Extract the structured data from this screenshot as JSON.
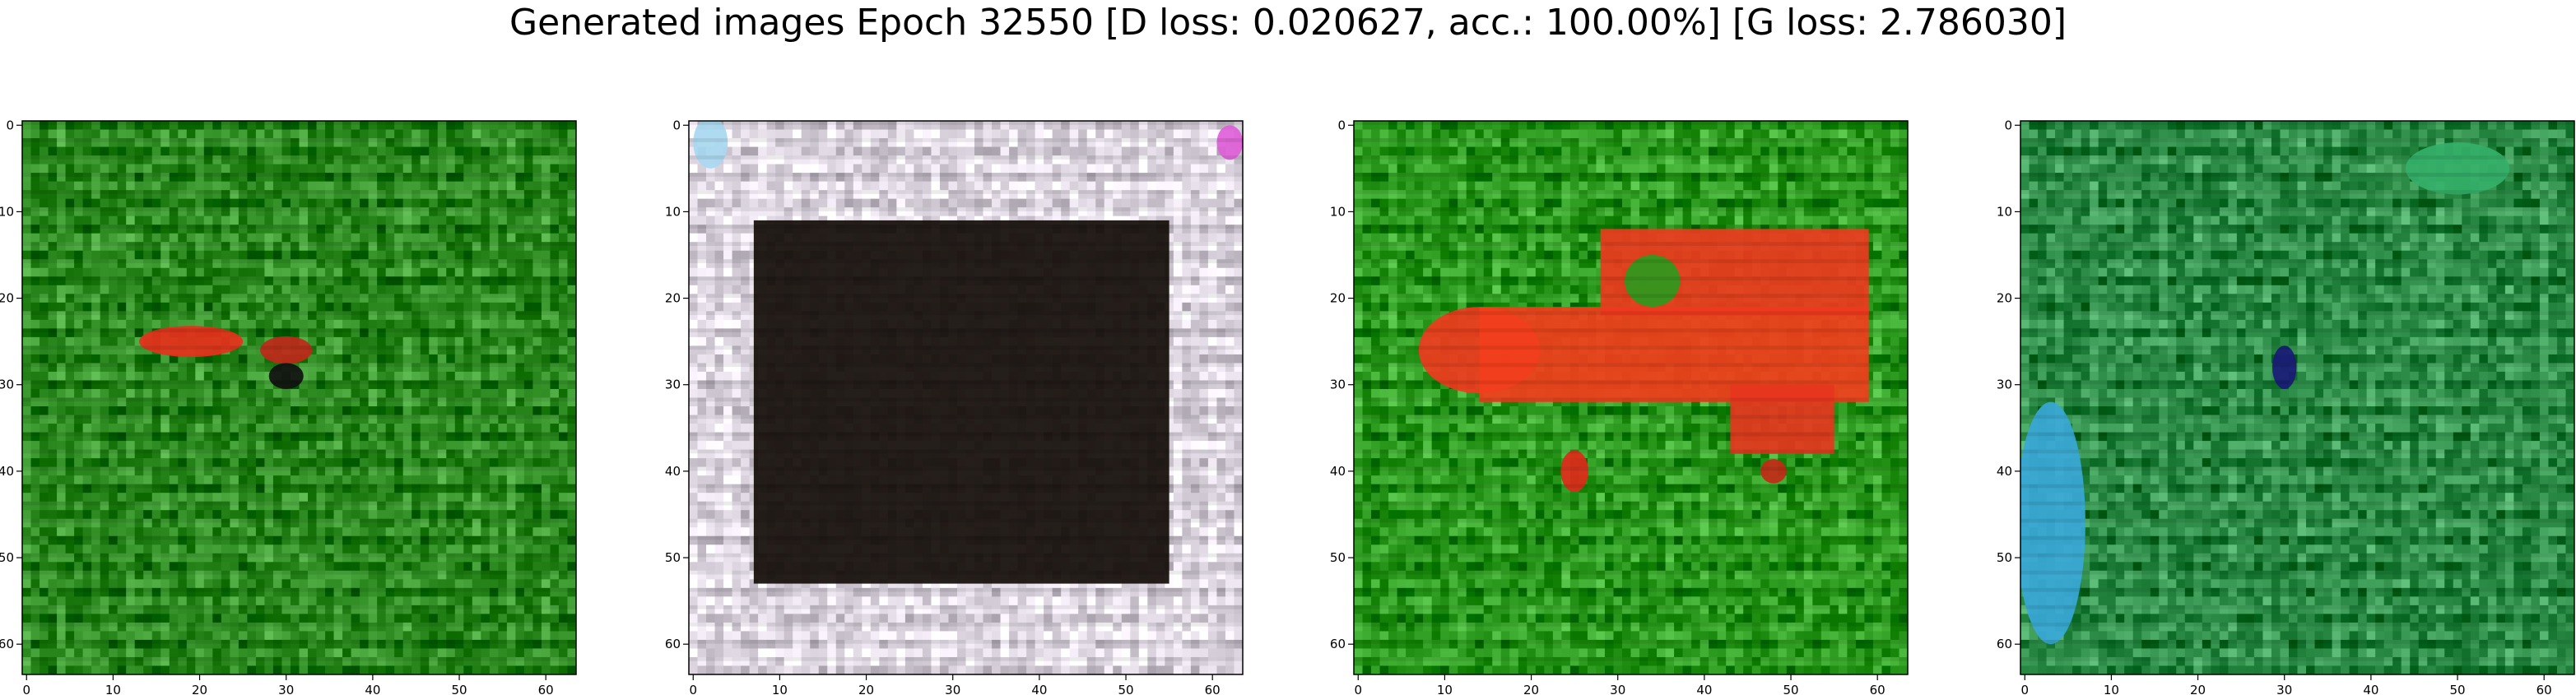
{
  "title": "Generated images Epoch 32550 [D loss: 0.020627, acc.: 100.00%] [G loss: 2.786030]",
  "chart_data": [
    {
      "type": "heatmap",
      "panel": 1,
      "xlim": [
        -0.5,
        63.5
      ],
      "ylim": [
        63.5,
        -0.5
      ],
      "x_ticks": [
        0,
        10,
        20,
        30,
        40,
        50,
        60
      ],
      "y_ticks": [
        0,
        10,
        20,
        30,
        40,
        50,
        60
      ],
      "base_color": "#2e8b22",
      "features": [
        {
          "kind": "blob",
          "cx": 19,
          "cy": 25,
          "rx": 6,
          "ry": 1.8,
          "color": "#e8301c"
        },
        {
          "kind": "blob",
          "cx": 30,
          "cy": 26,
          "rx": 3,
          "ry": 1.6,
          "color": "#c0281a"
        },
        {
          "kind": "blob",
          "cx": 30,
          "cy": 29,
          "rx": 2,
          "ry": 1.5,
          "color": "#111111"
        }
      ]
    },
    {
      "type": "heatmap",
      "panel": 2,
      "xlim": [
        -0.5,
        63.5
      ],
      "ylim": [
        63.5,
        -0.5
      ],
      "x_ticks": [
        0,
        10,
        20,
        30,
        40,
        50,
        60
      ],
      "y_ticks": [
        0,
        10,
        20,
        30,
        40,
        50,
        60
      ],
      "base_color": "#e4dde8",
      "features": [
        {
          "kind": "rect",
          "x0": 7,
          "y0": 11,
          "x1": 55,
          "y1": 53,
          "color": "#120c08"
        },
        {
          "kind": "blob",
          "cx": 2,
          "cy": 2,
          "rx": 2,
          "ry": 3,
          "color": "#a8d8f0"
        },
        {
          "kind": "blob",
          "cx": 62,
          "cy": 2,
          "rx": 1.5,
          "ry": 2,
          "color": "#e060d8"
        }
      ]
    },
    {
      "type": "heatmap",
      "panel": 3,
      "xlim": [
        -0.5,
        63.5
      ],
      "ylim": [
        63.5,
        -0.5
      ],
      "x_ticks": [
        0,
        10,
        20,
        30,
        40,
        50,
        60
      ],
      "y_ticks": [
        0,
        10,
        20,
        30,
        40,
        50,
        60
      ],
      "base_color": "#2c9a1e",
      "features": [
        {
          "kind": "blob",
          "cx": 14,
          "cy": 26,
          "rx": 7,
          "ry": 5,
          "color": "#f03a1e"
        },
        {
          "kind": "rect",
          "x0": 14,
          "y0": 21,
          "x1": 59,
          "y1": 32,
          "color": "#f23e1c"
        },
        {
          "kind": "rect",
          "x0": 28,
          "y0": 12,
          "x1": 59,
          "y1": 22,
          "color": "#ee3a1e"
        },
        {
          "kind": "rect",
          "x0": 43,
          "y0": 30,
          "x1": 55,
          "y1": 38,
          "color": "#e6361e"
        },
        {
          "kind": "blob",
          "cx": 34,
          "cy": 18,
          "rx": 3.2,
          "ry": 3,
          "color": "#2c9a1e"
        },
        {
          "kind": "blob",
          "cx": 25,
          "cy": 40,
          "rx": 1.6,
          "ry": 2.4,
          "color": "#e02a1a"
        },
        {
          "kind": "blob",
          "cx": 48,
          "cy": 40,
          "rx": 1.5,
          "ry": 1.4,
          "color": "#c22a18"
        }
      ]
    },
    {
      "type": "heatmap",
      "panel": 4,
      "xlim": [
        -0.5,
        63.5
      ],
      "ylim": [
        63.5,
        -0.5
      ],
      "x_ticks": [
        0,
        10,
        20,
        30,
        40,
        50,
        60
      ],
      "y_ticks": [
        0,
        10,
        20,
        30,
        40,
        50,
        60
      ],
      "base_color": "#2f8f4a",
      "features": [
        {
          "kind": "blob",
          "cx": 3,
          "cy": 46,
          "rx": 4,
          "ry": 14,
          "color": "#3aa8d8"
        },
        {
          "kind": "blob",
          "cx": 30,
          "cy": 28,
          "rx": 1.4,
          "ry": 2.5,
          "color": "#1a1a78"
        },
        {
          "kind": "blob",
          "cx": 50,
          "cy": 5,
          "rx": 6,
          "ry": 3,
          "color": "#35b06a"
        }
      ]
    }
  ]
}
